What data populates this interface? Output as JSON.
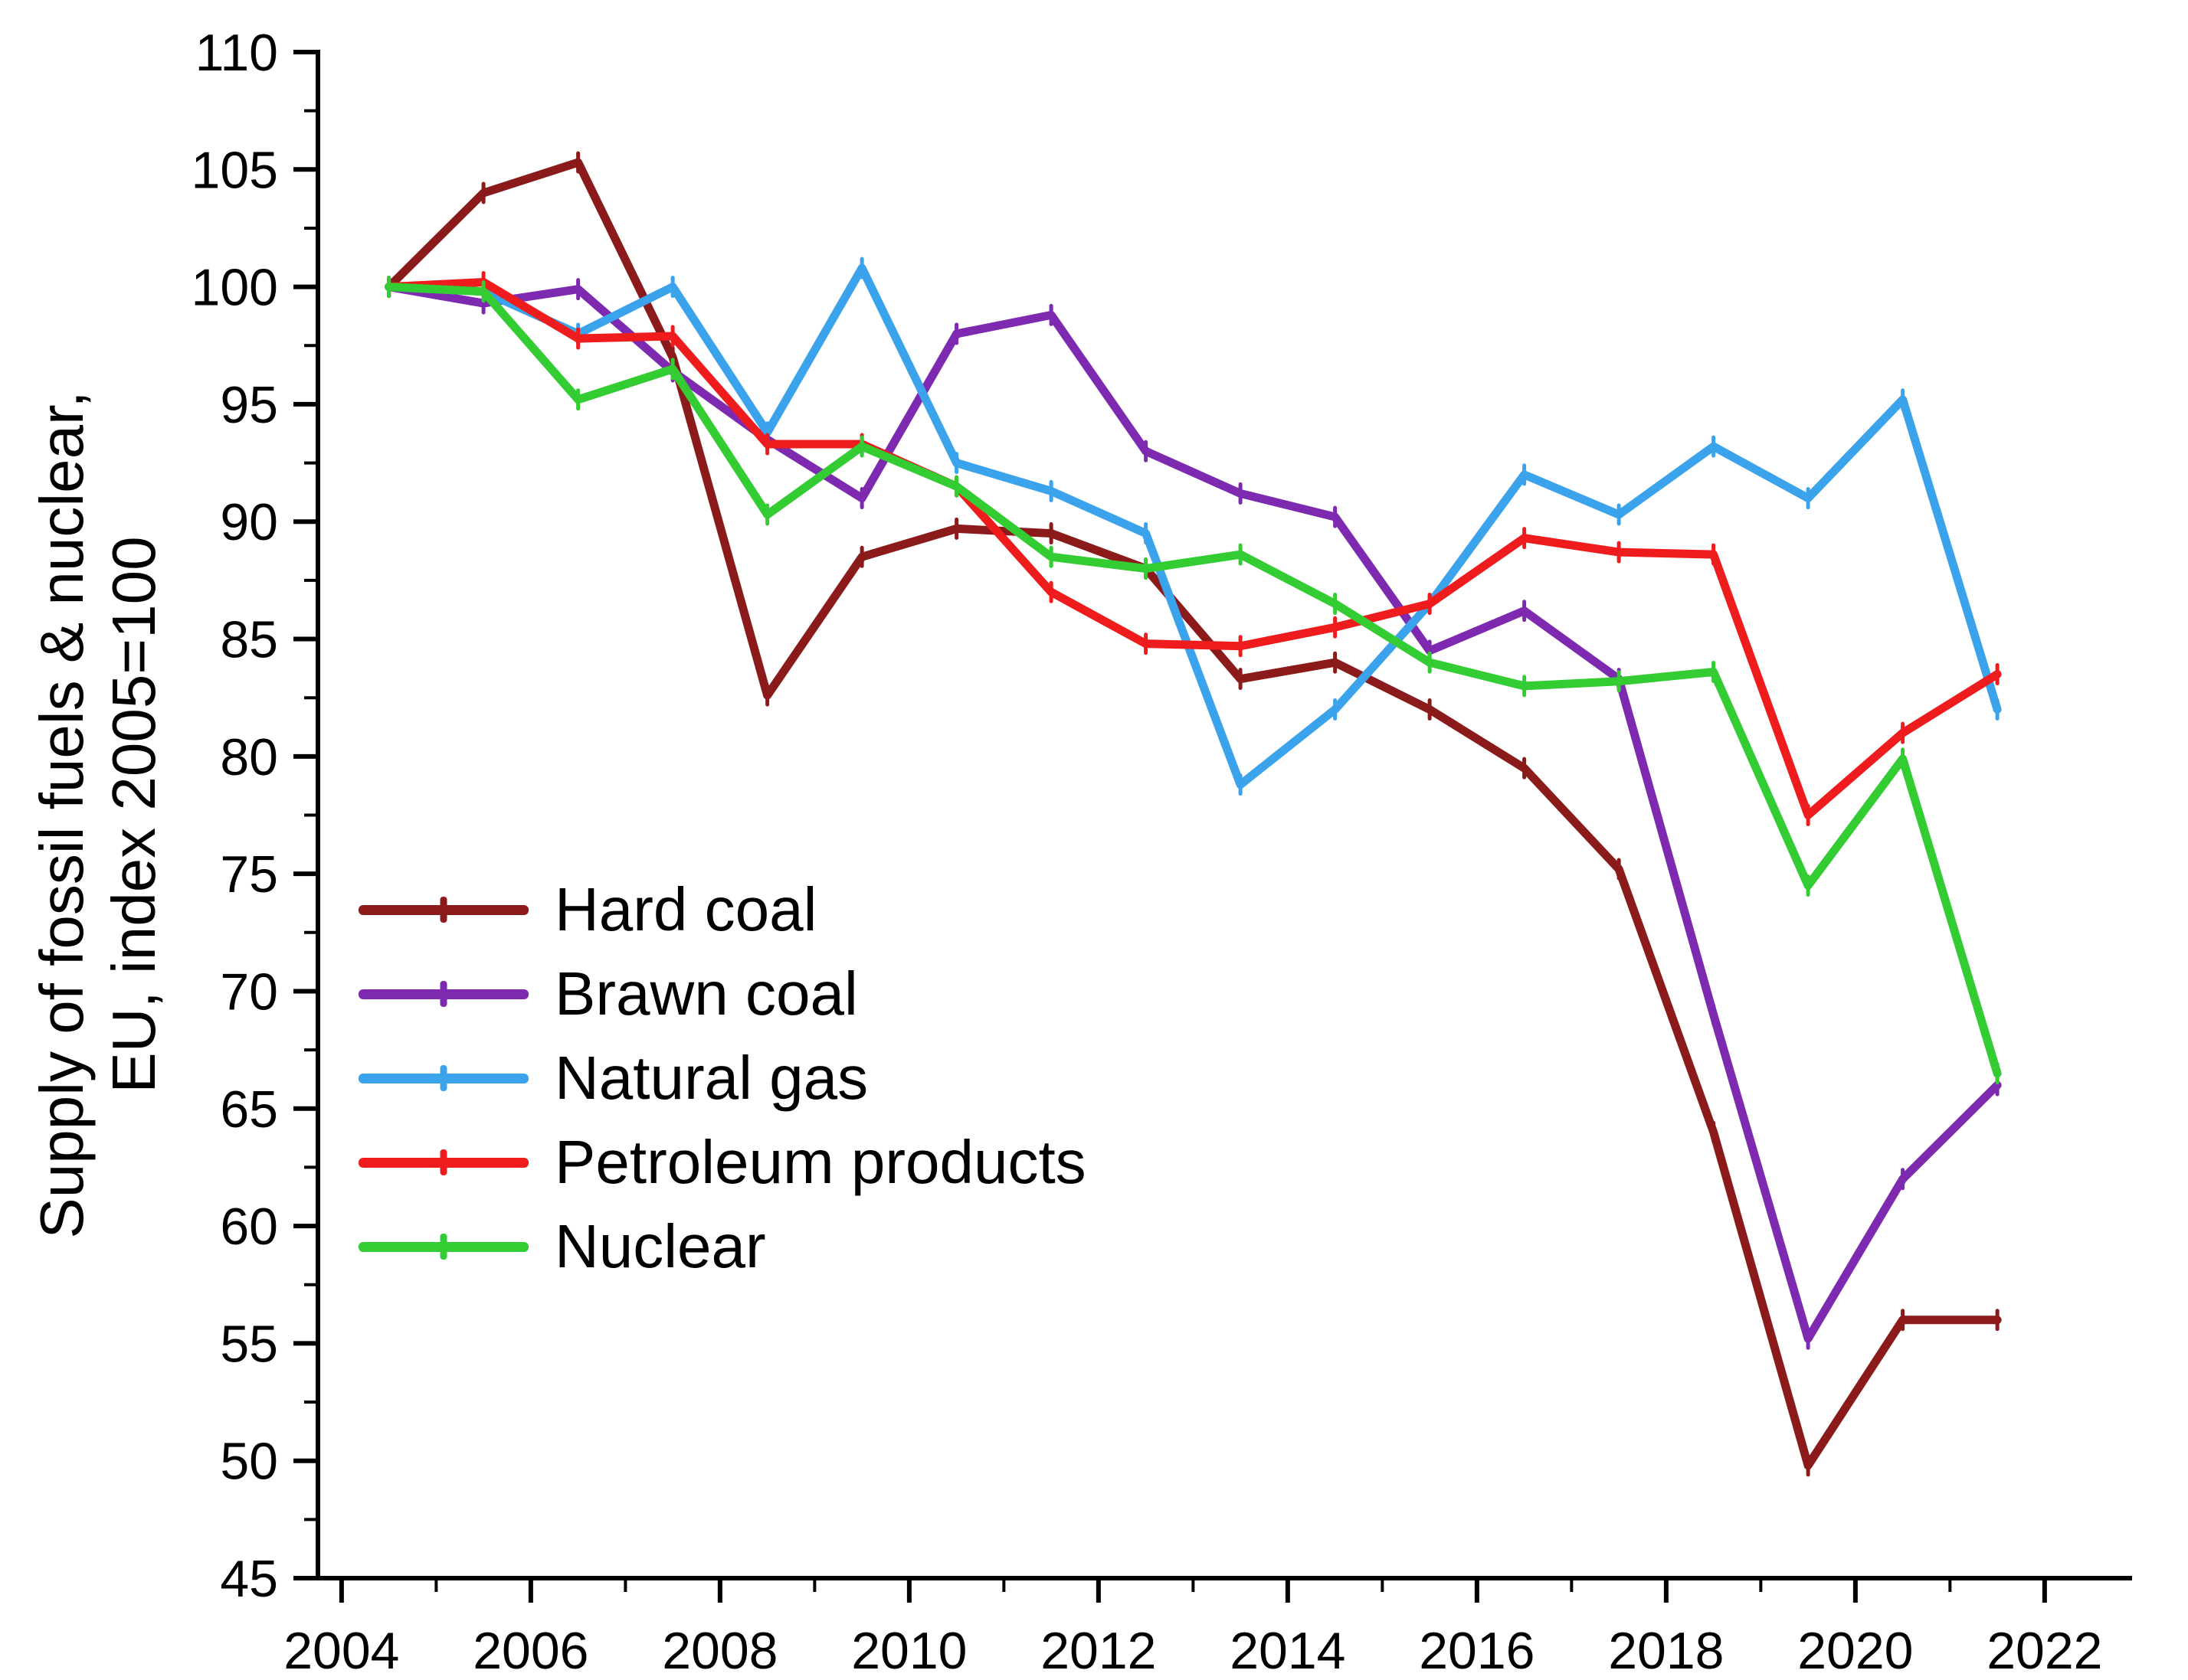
{
  "chart_data": {
    "type": "line",
    "title": "",
    "ylabel_line1": "Supply of fossil fuels & nuclear,",
    "ylabel_line2": "EU, index 2005=100",
    "xlabel": "",
    "xlim": [
      2003.75,
      2022.9
    ],
    "ylim": [
      45,
      110
    ],
    "grid": false,
    "legend_position": "inside-left-middle",
    "axis_color": "#000000",
    "x_major_ticks": [
      2004,
      2006,
      2008,
      2010,
      2012,
      2014,
      2016,
      2018,
      2020,
      2022
    ],
    "x_minor_ticks": [
      2005,
      2007,
      2009,
      2011,
      2013,
      2015,
      2017,
      2019,
      2021
    ],
    "y_major_ticks": [
      45,
      50,
      55,
      60,
      65,
      70,
      75,
      80,
      85,
      90,
      95,
      100,
      105,
      110
    ],
    "y_minor_ticks": [
      47.5,
      52.5,
      57.5,
      62.5,
      67.5,
      72.5,
      77.5,
      82.5,
      87.5,
      92.5,
      97.5,
      102.5,
      107.5
    ],
    "x": [
      2004.5,
      2005.5,
      2006.5,
      2007.5,
      2008.5,
      2009.5,
      2010.5,
      2011.5,
      2012.5,
      2013.5,
      2014.5,
      2015.5,
      2016.5,
      2017.5,
      2018.5,
      2019.5,
      2020.5,
      2021.5
    ],
    "series": [
      {
        "id": "hard-coal",
        "name": "Hard coal",
        "color": "#8B1A1A",
        "values": [
          100,
          104.0,
          105.3,
          97.0,
          82.6,
          88.5,
          89.7,
          89.5,
          88.0,
          83.3,
          84.0,
          82.0,
          79.5,
          75.2,
          64.0,
          49.8,
          56.0,
          56.0
        ]
      },
      {
        "id": "brawn-coal",
        "name": "Brawn coal",
        "color": "#7E2AB0",
        "values": [
          100,
          99.3,
          99.9,
          96.4,
          93.5,
          91.0,
          98.0,
          98.8,
          93.0,
          91.2,
          90.2,
          84.5,
          86.2,
          83.3,
          69.0,
          55.2,
          62.0,
          66.0
        ]
      },
      {
        "id": "natural-gas",
        "name": "Natural gas",
        "color": "#3BA3EC",
        "values": [
          100,
          99.8,
          98.0,
          100.0,
          93.8,
          100.8,
          92.5,
          91.3,
          89.5,
          78.8,
          82.0,
          86.5,
          92.0,
          90.3,
          93.2,
          91.0,
          95.2,
          82.0
        ]
      },
      {
        "id": "petroleum-products",
        "name": "Petroleum products",
        "color": "#EE1C1C",
        "values": [
          100,
          100.2,
          97.8,
          97.9,
          93.3,
          93.3,
          91.5,
          87.0,
          84.8,
          84.7,
          85.5,
          86.5,
          89.3,
          88.7,
          88.6,
          77.5,
          81.0,
          83.5
        ]
      },
      {
        "id": "nuclear",
        "name": "Nuclear",
        "color": "#33CC33",
        "values": [
          100,
          99.8,
          95.2,
          96.5,
          90.3,
          93.2,
          91.5,
          88.5,
          88.0,
          88.6,
          86.5,
          84.0,
          83.0,
          83.2,
          83.6,
          74.5,
          79.9,
          66.5
        ]
      }
    ]
  }
}
